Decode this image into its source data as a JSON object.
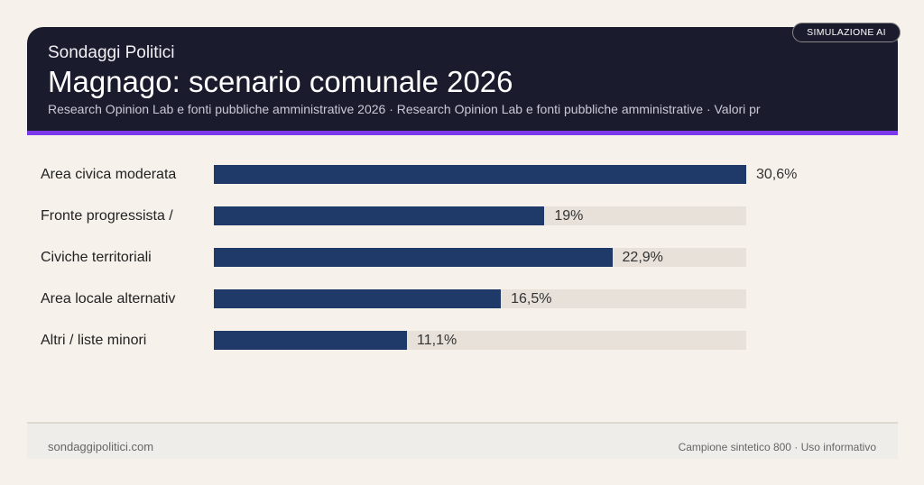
{
  "header": {
    "brand": "Sondaggi Politici",
    "title": "Magnago: scenario comunale 2026",
    "subtitle": "Research Opinion Lab e fonti pubbliche amministrative 2026 · Research Opinion Lab e fonti pubbliche amministrative · Valori pr",
    "badge": "SIMULAZIONE AI"
  },
  "chart_data": {
    "type": "bar",
    "orientation": "horizontal",
    "categories": [
      "Area civica moderata",
      "Fronte progressista /",
      "Civiche territoriali",
      "Area locale alternativ",
      "Altri / liste minori"
    ],
    "values": [
      30.6,
      19,
      22.9,
      16.5,
      11.1
    ],
    "value_labels": [
      "30,6%",
      "19%",
      "22,9%",
      "16,5%",
      "11,1%"
    ],
    "xlim": [
      0,
      30.6
    ],
    "grid": false,
    "colors": {
      "bar": "#1f3a68",
      "track": "#e7e1da"
    }
  },
  "footer": {
    "site": "sondaggipolitici.com",
    "note": "Campione sintetico 800 · Uso informativo"
  },
  "colors": {
    "header_bg": "#1b1b2e",
    "accent": "#7c3aed",
    "background": "#f6f1eb"
  }
}
